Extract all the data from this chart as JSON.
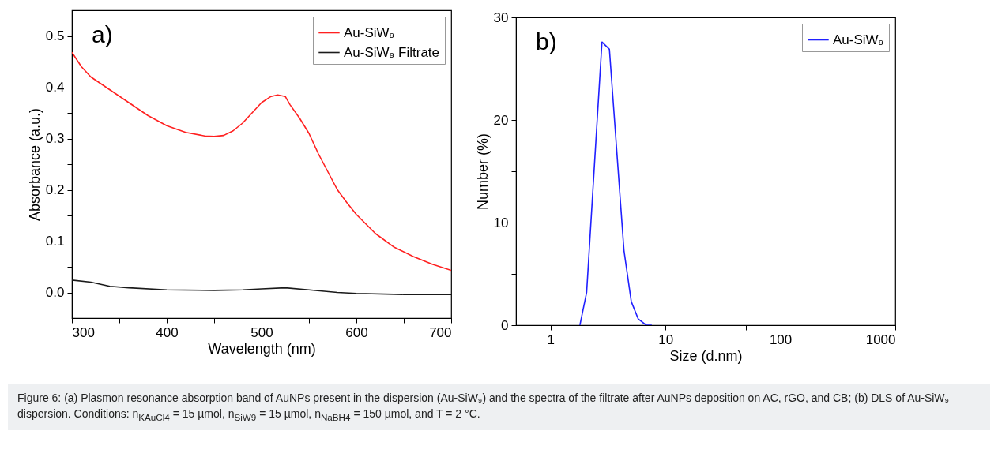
{
  "chart_data": [
    {
      "type": "line",
      "xlabel": "Wavelength (nm)",
      "ylabel": "Absorbance (a.u.)",
      "xlim": [
        300,
        700
      ],
      "ylim": [
        -0.05,
        0.55
      ],
      "xticks": [
        300,
        {
          "value": 350,
          "label": null
        },
        400,
        {
          "value": 450,
          "label": null
        },
        500,
        {
          "value": 550,
          "label": null
        },
        600,
        {
          "value": 650,
          "label": null
        },
        700
      ],
      "yticks": [
        {
          "value": 0,
          "label": "0.0"
        },
        {
          "value": 0.05,
          "label": null
        },
        0.1,
        {
          "value": 0.15,
          "label": null
        },
        0.2,
        {
          "value": 0.25,
          "label": null
        },
        0.3,
        {
          "value": 0.35,
          "label": null
        },
        0.4,
        {
          "value": 0.45,
          "label": null
        },
        0.5
      ],
      "legend": "top right",
      "annotations": [
        "a)"
      ],
      "series": [
        {
          "name": "Au-SiW₉",
          "color": "#ff2020",
          "x": [
            300,
            310,
            320,
            340,
            360,
            380,
            400,
            420,
            440,
            450,
            460,
            470,
            480,
            490,
            500,
            510,
            517,
            525,
            530,
            540,
            550,
            560,
            570,
            580,
            590,
            600,
            620,
            640,
            660,
            680,
            700
          ],
          "values": [
            0.468,
            0.44,
            0.42,
            0.395,
            0.37,
            0.345,
            0.325,
            0.312,
            0.305,
            0.304,
            0.306,
            0.315,
            0.33,
            0.35,
            0.37,
            0.382,
            0.385,
            0.382,
            0.366,
            0.34,
            0.31,
            0.27,
            0.235,
            0.2,
            0.175,
            0.152,
            0.115,
            0.088,
            0.07,
            0.055,
            0.043
          ]
        },
        {
          "name": "Au-SiW₉ Filtrate",
          "color": "#1a1a1a",
          "x": [
            300,
            320,
            340,
            360,
            400,
            450,
            480,
            500,
            525,
            550,
            580,
            600,
            650,
            700
          ],
          "values": [
            0.024,
            0.02,
            0.012,
            0.009,
            0.005,
            0.004,
            0.005,
            0.007,
            0.009,
            0.005,
            0.0,
            -0.002,
            -0.004,
            -0.004
          ]
        }
      ]
    },
    {
      "type": "line",
      "xlabel": "Size (d.nm)",
      "ylabel": "Number (%)",
      "log": "x",
      "xlim": [
        0.5,
        1000
      ],
      "ylim": [
        0,
        30
      ],
      "xticks": [
        1,
        {
          "value": 5,
          "label": null
        },
        10,
        {
          "value": 50,
          "label": null
        },
        100,
        {
          "value": 500,
          "label": null
        },
        1000
      ],
      "yticks": [
        0,
        {
          "value": 5,
          "label": null
        },
        10,
        {
          "value": 15,
          "label": null
        },
        20,
        {
          "value": 25,
          "label": null
        },
        30
      ],
      "legend": "top right",
      "annotations": [
        "b)",
        "Figure 6: (a) Plasmon resonance absorption band of AuNPs present in the dispersion (Au-SiW₉) and the spectra of the filtrate after AuNPs deposition on AC, rGO, and CB; (b) DLS of Au-SiW₉ dispersion. Conditions: n$_{KAuCl4}$ = 15 µmol, n$_{SiW9}$ = 15 µmol, n$_{NaBH4}$ = 150 µmol, and T = 2 °C."
      ],
      "series": [
        {
          "name": "Au-SiW₉",
          "color": "#2020ff",
          "x": [
            1.8,
            2.06,
            2.8,
            3.25,
            4.35,
            5.04,
            5.8,
            6.8,
            7.6
          ],
          "values": [
            0,
            3.2,
            27.6,
            26.9,
            7.3,
            2.3,
            0.6,
            0,
            0
          ]
        }
      ]
    }
  ]
}
